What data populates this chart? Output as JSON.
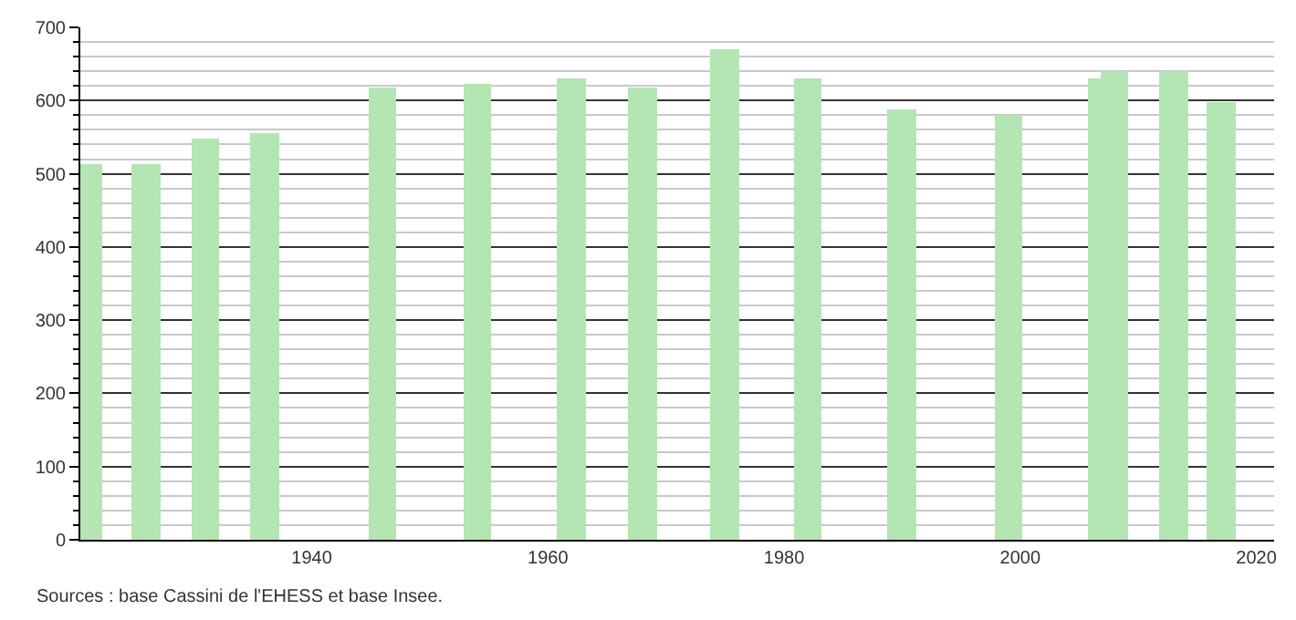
{
  "chart_data": {
    "type": "bar",
    "x": [
      1921,
      1926,
      1931,
      1936,
      1946,
      1954,
      1962,
      1968,
      1975,
      1982,
      1990,
      1999,
      2007,
      2008,
      2013,
      2017
    ],
    "values": [
      512,
      512,
      548,
      556,
      619,
      623,
      631,
      617,
      670,
      631,
      587,
      580,
      631,
      640,
      640,
      599
    ],
    "color": "#b3e6b3",
    "xlim": [
      1920.4,
      2021.5
    ],
    "xticks": [
      1940,
      1960,
      1980,
      2000,
      2020
    ],
    "ylim": [
      0,
      700
    ],
    "yticks": [
      0,
      100,
      200,
      300,
      400,
      500,
      600,
      700
    ],
    "grid": "y",
    "annotations": [
      "Sources : base Cassini de l'EHESS et base Insee."
    ]
  }
}
